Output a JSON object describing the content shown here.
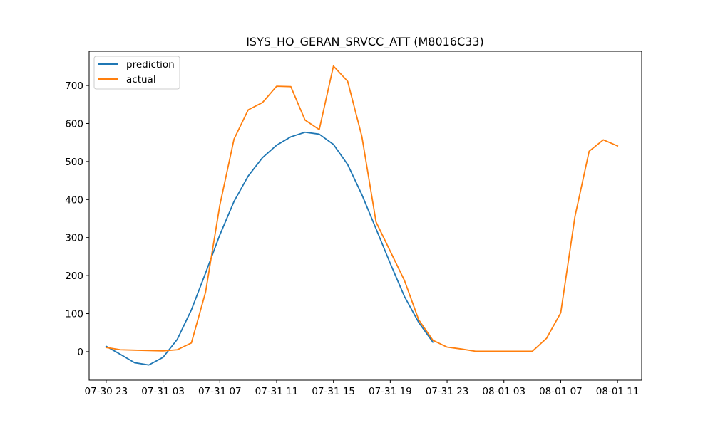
{
  "chart_data": {
    "type": "line",
    "title": "ISYS_HO_GERAN_SRVCC_ATT (M8016C33)",
    "xlabel": "",
    "ylabel": "",
    "grid": false,
    "legend_position": "top-left",
    "x_unit": "hours since 07-30 23:00",
    "xlim": [
      -1.2,
      37.7
    ],
    "ylim": [
      -75,
      790
    ],
    "x_ticks": [
      {
        "value": 0,
        "label": "07-30 23"
      },
      {
        "value": 4,
        "label": "07-31 03"
      },
      {
        "value": 8,
        "label": "07-31 07"
      },
      {
        "value": 12,
        "label": "07-31 11"
      },
      {
        "value": 16,
        "label": "07-31 15"
      },
      {
        "value": 20,
        "label": "07-31 19"
      },
      {
        "value": 24,
        "label": "07-31 23"
      },
      {
        "value": 28,
        "label": "08-01 03"
      },
      {
        "value": 32,
        "label": "08-01 07"
      },
      {
        "value": 36,
        "label": "08-01 11"
      }
    ],
    "y_ticks": [
      {
        "value": 0,
        "label": "0"
      },
      {
        "value": 100,
        "label": "100"
      },
      {
        "value": 200,
        "label": "200"
      },
      {
        "value": 300,
        "label": "300"
      },
      {
        "value": 400,
        "label": "400"
      },
      {
        "value": 500,
        "label": "500"
      },
      {
        "value": 600,
        "label": "600"
      },
      {
        "value": 700,
        "label": "700"
      }
    ],
    "series": [
      {
        "name": "prediction",
        "color": "#1f77b4",
        "x": [
          0,
          1,
          2,
          3,
          4,
          5,
          6,
          7,
          8,
          9,
          10,
          11,
          12,
          13,
          14,
          15,
          16,
          17,
          18,
          19,
          20,
          21,
          22,
          23
        ],
        "values": [
          14,
          -7,
          -29,
          -35,
          -15,
          32,
          110,
          207,
          307,
          395,
          462,
          510,
          543,
          565,
          577,
          572,
          545,
          492,
          413,
          323,
          232,
          145,
          77,
          25
        ]
      },
      {
        "name": "actual",
        "color": "#ff7f0e",
        "x": [
          0,
          1,
          2,
          3,
          4,
          5,
          6,
          7,
          8,
          9,
          10,
          11,
          12,
          13,
          14,
          15,
          16,
          17,
          18,
          19,
          20,
          21,
          22,
          23,
          24,
          25,
          26,
          27,
          28,
          29,
          30,
          31,
          32,
          33,
          34,
          35,
          36
        ],
        "values": [
          11,
          5,
          4,
          3,
          2,
          5,
          23,
          157,
          385,
          559,
          636,
          655,
          698,
          697,
          609,
          584,
          751,
          711,
          566,
          341,
          264,
          187,
          84,
          30,
          12,
          7,
          1,
          1,
          1,
          1,
          1,
          35,
          102,
          355,
          527,
          557,
          541
        ]
      }
    ]
  }
}
